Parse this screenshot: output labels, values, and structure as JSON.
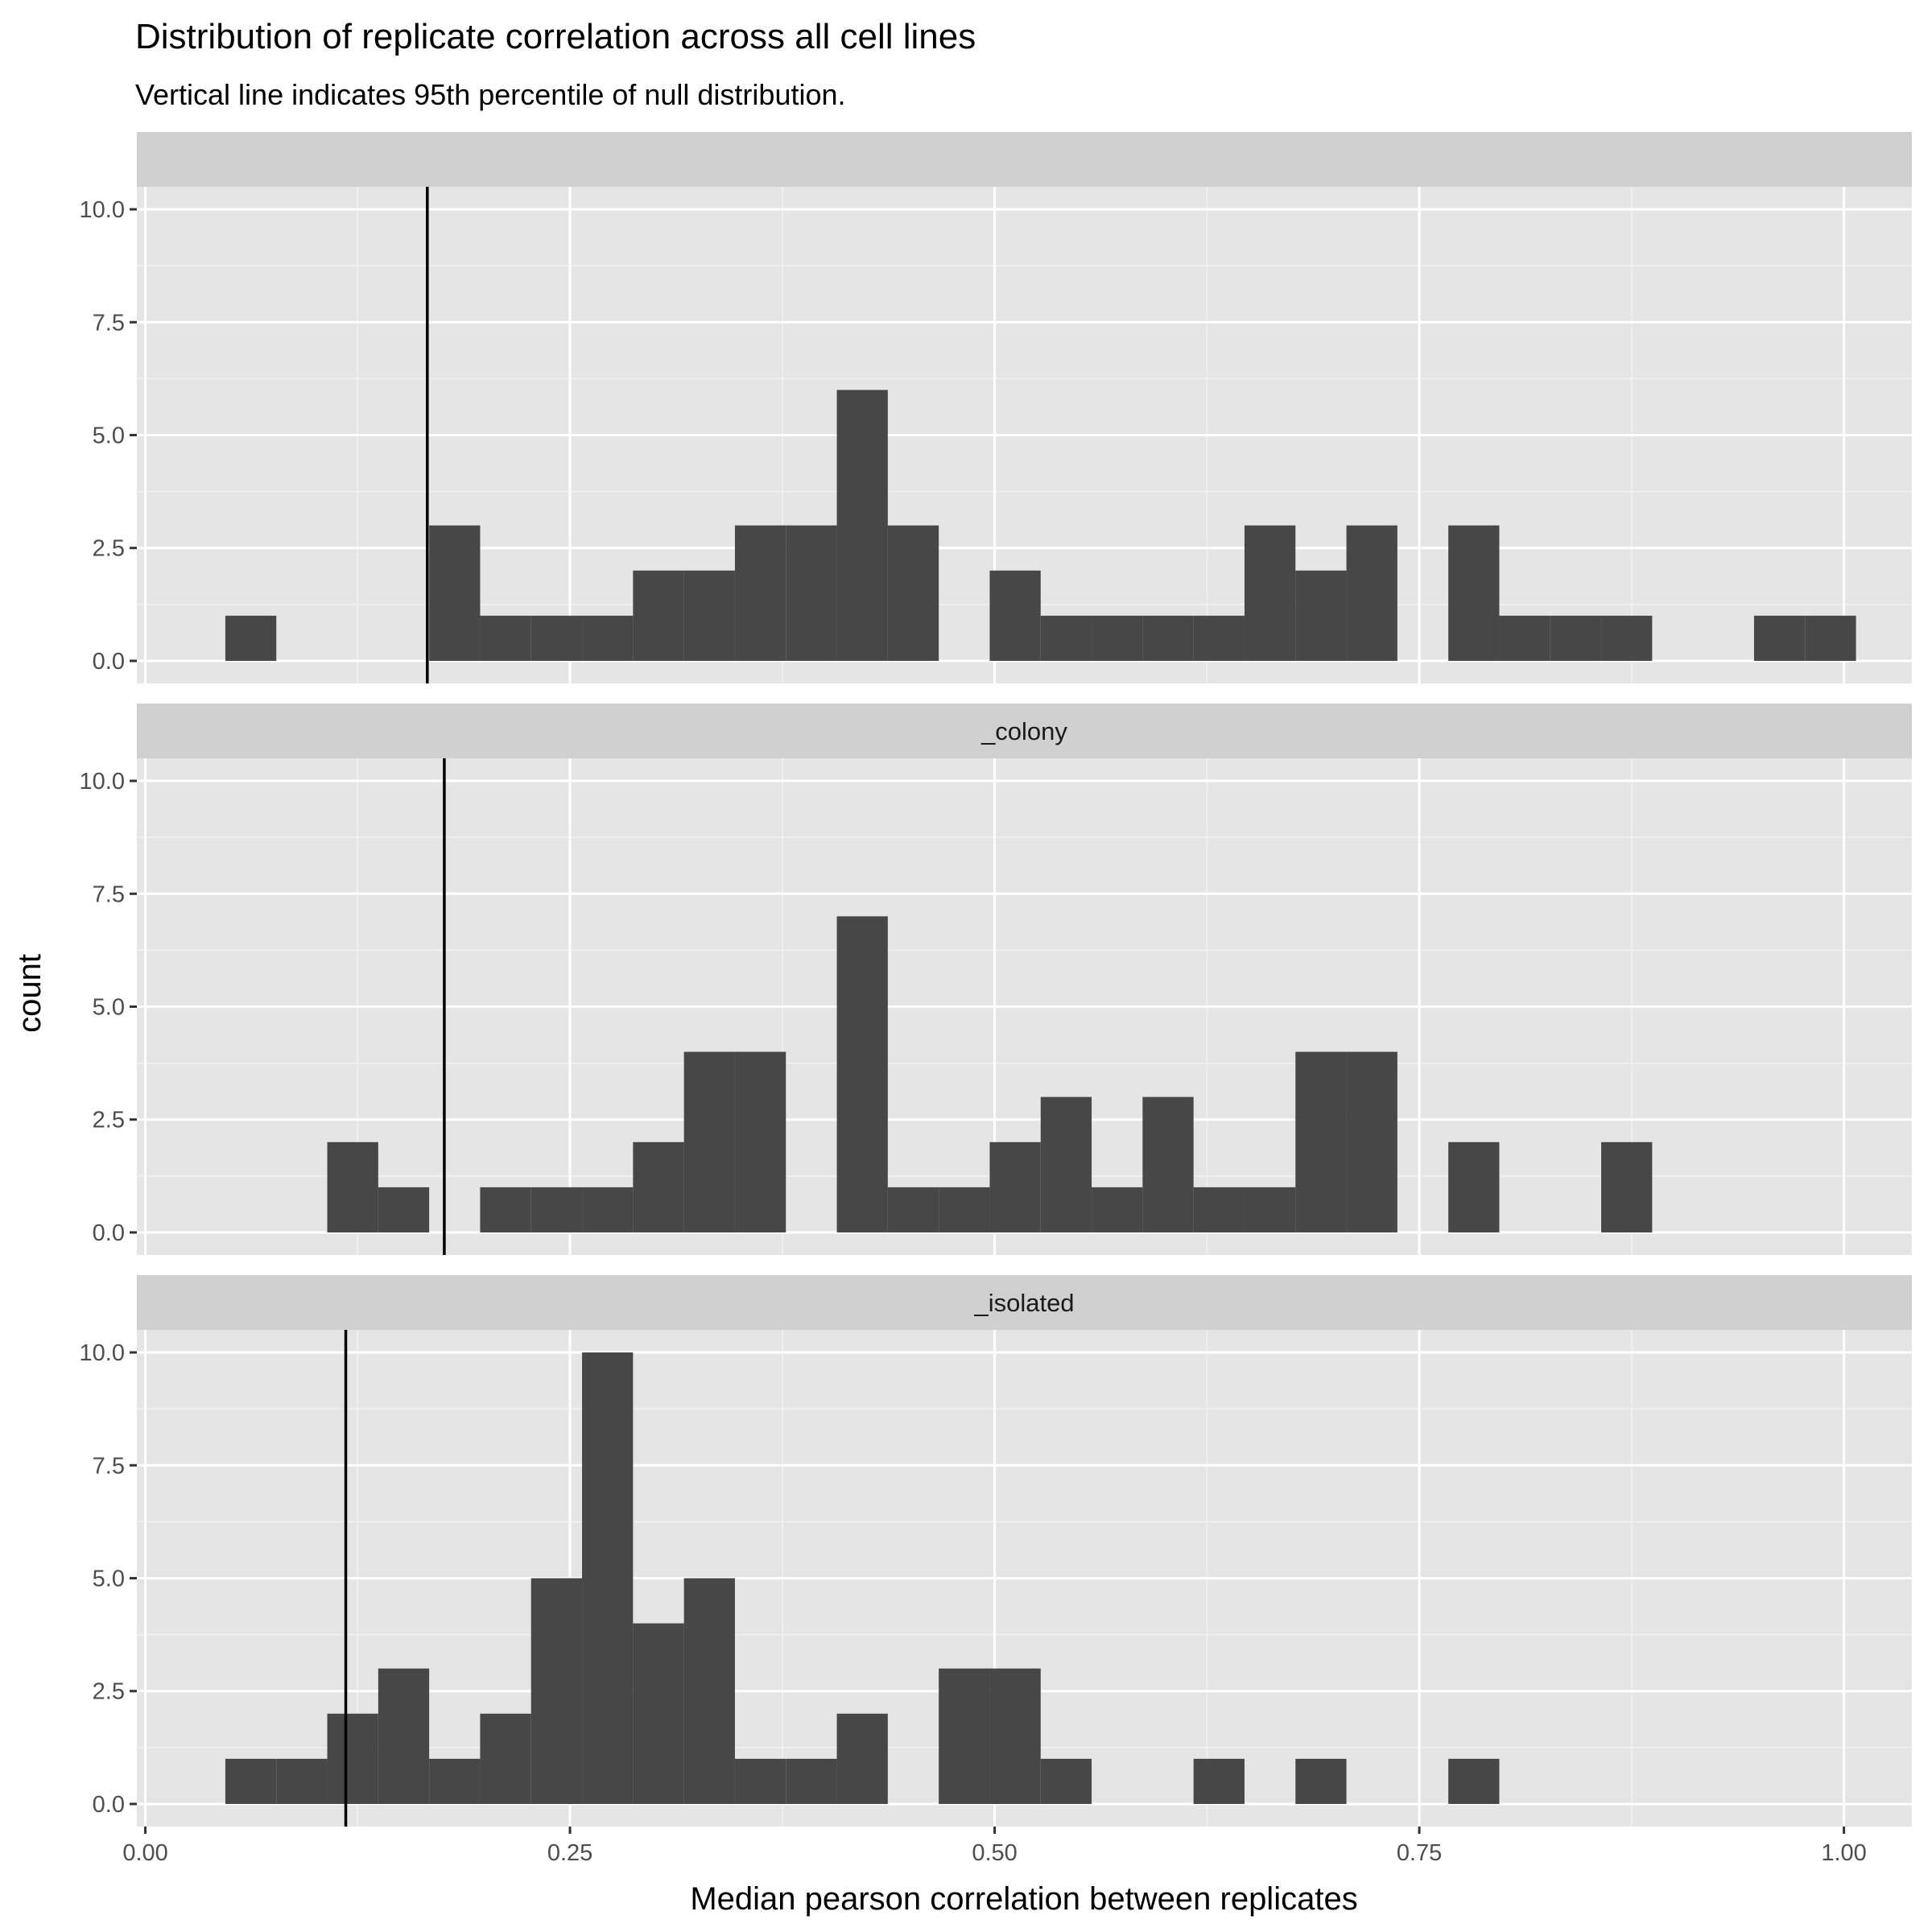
{
  "chart_data": {
    "type": "bar",
    "title": "Distribution of replicate correlation across all cell lines",
    "subtitle": "Vertical line indicates 95th percentile of null distribution.",
    "xlabel": "Median pearson correlation between replicates",
    "ylabel": "count",
    "xlim": [
      -0.005,
      1.04
    ],
    "ylim": [
      -0.5,
      10.5
    ],
    "x_ticks": [
      0.0,
      0.25,
      0.5,
      0.75,
      1.0
    ],
    "x_tick_labels": [
      "0.00",
      "0.25",
      "0.50",
      "0.75",
      "1.00"
    ],
    "y_ticks": [
      0,
      2.5,
      5,
      7.5,
      10
    ],
    "y_tick_labels": [
      "0.0",
      "2.5",
      "5.0",
      "7.5",
      "10.0"
    ],
    "grid": true,
    "bar_color": "#474747",
    "panel_background": "#e5e5e5",
    "strip_background": "#d0d0d0",
    "bin_start": 0.0471,
    "bin_width": 0.03,
    "panels": [
      {
        "strip_label": "",
        "threshold": 0.166,
        "counts": [
          1,
          0,
          0,
          0,
          3,
          1,
          1,
          1,
          2,
          2,
          3,
          3,
          6,
          3,
          0,
          2,
          1,
          1,
          1,
          1,
          3,
          2,
          3,
          0,
          3,
          1,
          1,
          1,
          0,
          0,
          1,
          1
        ]
      },
      {
        "strip_label": "_colony",
        "threshold": 0.176,
        "counts": [
          0,
          0,
          2,
          1,
          0,
          1,
          1,
          1,
          2,
          4,
          4,
          0,
          7,
          1,
          1,
          2,
          3,
          1,
          3,
          1,
          1,
          4,
          4,
          0,
          2,
          0,
          0,
          2,
          0,
          0,
          0,
          0
        ]
      },
      {
        "strip_label": "_isolated",
        "threshold": 0.118,
        "counts": [
          1,
          1,
          2,
          3,
          1,
          2,
          5,
          10,
          4,
          5,
          1,
          1,
          2,
          0,
          3,
          3,
          1,
          0,
          0,
          1,
          0,
          1,
          0,
          0,
          1,
          0,
          0,
          0,
          0,
          0,
          0,
          0
        ]
      }
    ]
  }
}
